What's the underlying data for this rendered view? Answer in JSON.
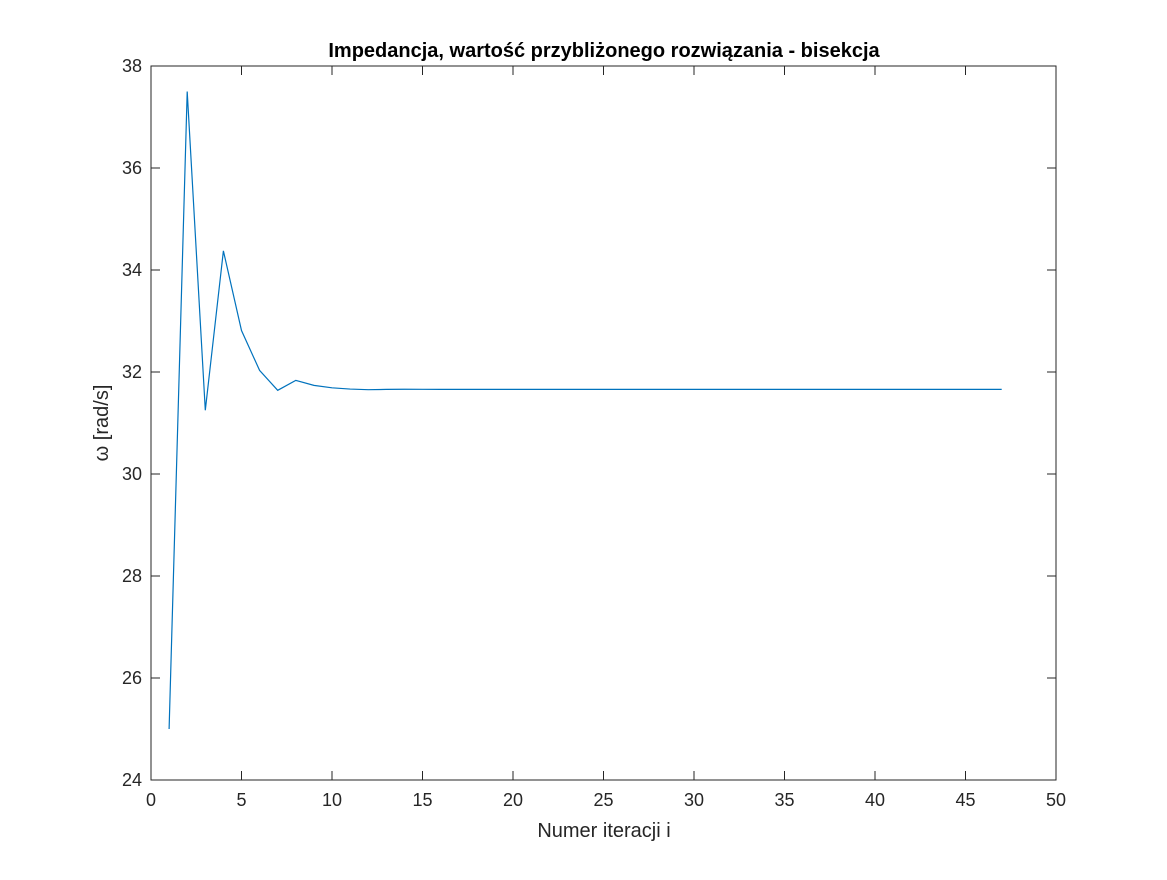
{
  "chart_data": {
    "type": "line",
    "title": "Impedancja, wartość przybliżonego rozwiązania - bisekcja",
    "xlabel": "Numer iteracji i",
    "ylabel": "ω [rad/s]",
    "xlim": [
      0,
      50
    ],
    "ylim": [
      24,
      38
    ],
    "xticks": [
      0,
      5,
      10,
      15,
      20,
      25,
      30,
      35,
      40,
      45,
      50
    ],
    "yticks": [
      24,
      26,
      28,
      30,
      32,
      34,
      36,
      38
    ],
    "xtick_labels": [
      "0",
      "5",
      "10",
      "15",
      "20",
      "25",
      "30",
      "35",
      "40",
      "45",
      "50"
    ],
    "ytick_labels": [
      "24",
      "26",
      "28",
      "30",
      "32",
      "34",
      "36",
      "38"
    ],
    "grid": false,
    "line_color": "#0072BD",
    "series": [
      {
        "x": [
          1,
          2,
          3,
          4,
          5,
          6,
          7,
          8,
          9,
          10,
          11,
          12,
          13,
          14,
          15,
          16,
          17,
          18,
          19,
          20,
          21,
          22,
          23,
          24,
          25,
          26,
          27,
          28,
          29,
          30,
          31,
          32,
          33,
          34,
          35,
          36,
          37,
          38,
          39,
          40,
          41,
          42,
          43,
          44,
          45,
          46,
          47
        ],
        "y": [
          25.0,
          37.5,
          31.25,
          34.375,
          32.8125,
          32.03125,
          31.640625,
          31.8359375,
          31.73828125,
          31.689453125,
          31.665039063,
          31.652832031,
          31.658935547,
          31.662,
          31.6605,
          31.66,
          31.66,
          31.66,
          31.66,
          31.66,
          31.66,
          31.66,
          31.66,
          31.66,
          31.66,
          31.66,
          31.66,
          31.66,
          31.66,
          31.66,
          31.66,
          31.66,
          31.66,
          31.66,
          31.66,
          31.66,
          31.66,
          31.66,
          31.66,
          31.66,
          31.66,
          31.66,
          31.66,
          31.66,
          31.66,
          31.66,
          31.66
        ]
      }
    ]
  }
}
